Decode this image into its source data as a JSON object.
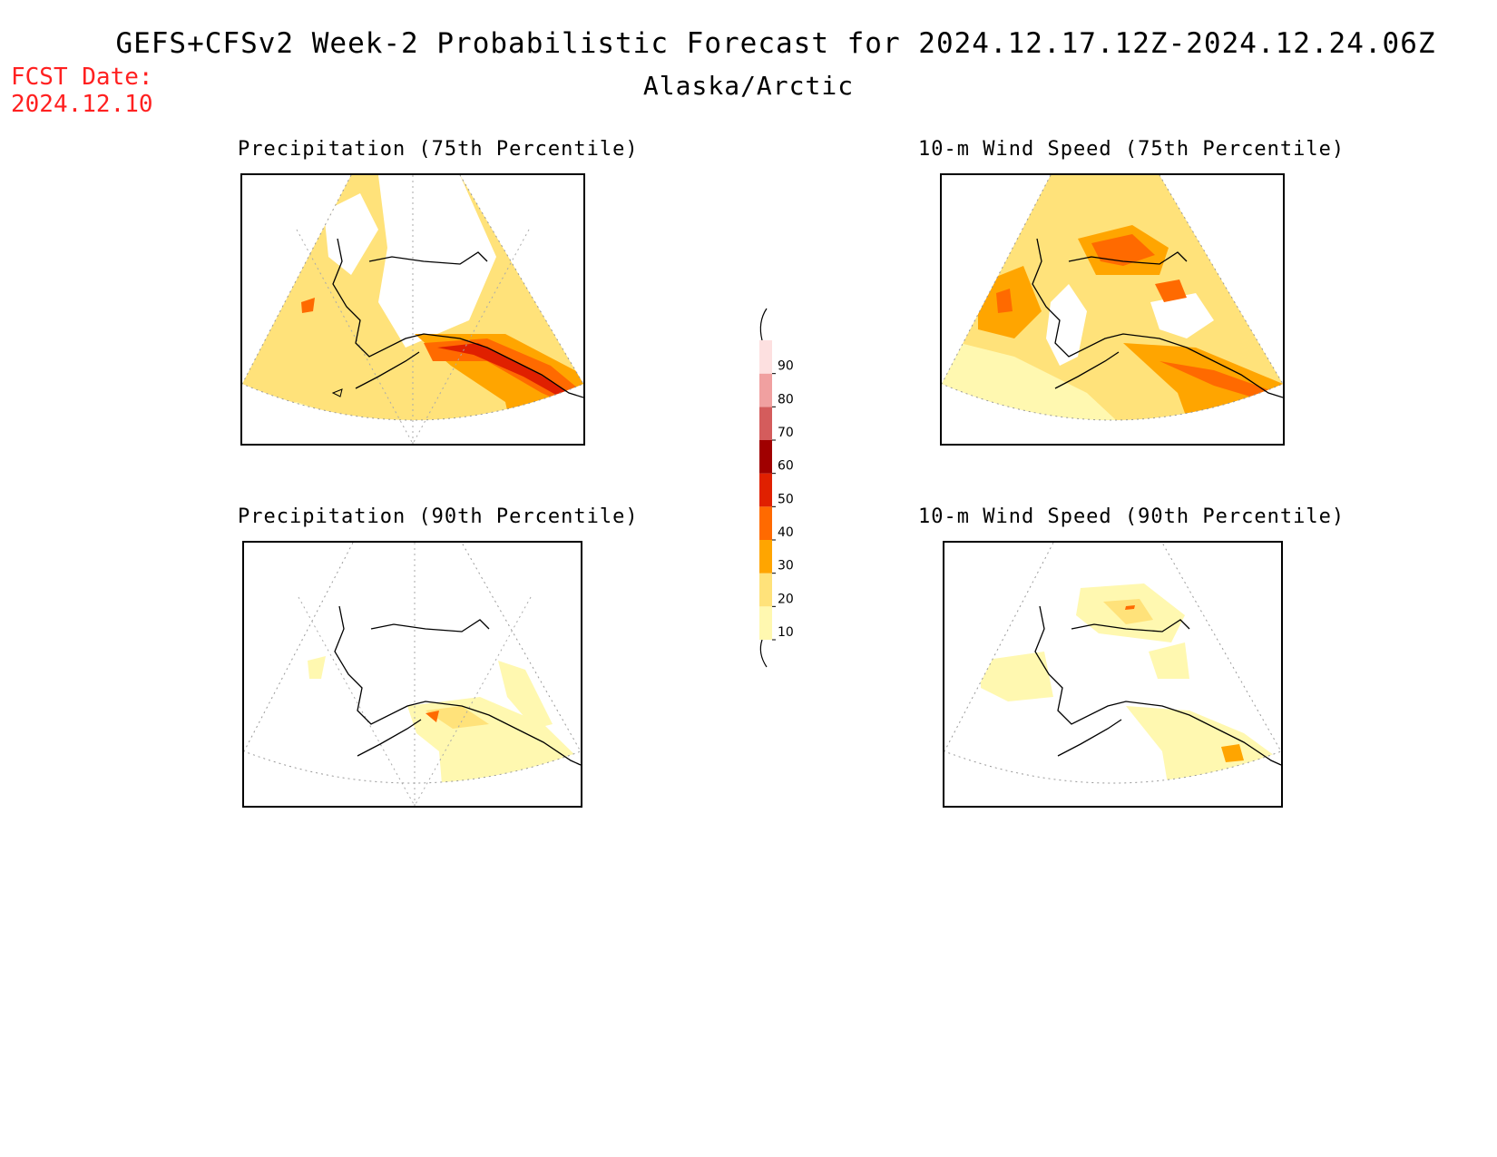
{
  "header": {
    "title": "GEFS+CFSv2 Week-2 Probabilistic Forecast for 2024.12.17.12Z-2024.12.24.06Z",
    "subtitle": "Alaska/Arctic",
    "fcst_date_label": "FCST Date:",
    "fcst_date_value": "2024.12.10"
  },
  "panels": [
    {
      "id": "precip-75",
      "title": "Precipitation (75th Percentile)"
    },
    {
      "id": "wind-75",
      "title": "10-m Wind Speed (75th Percentile)"
    },
    {
      "id": "precip-90",
      "title": "Precipitation (90th Percentile)"
    },
    {
      "id": "wind-90",
      "title": "10-m Wind Speed (90th Percentile)"
    }
  ],
  "legend": {
    "levels": [
      "10",
      "20",
      "30",
      "40",
      "50",
      "60",
      "70",
      "80",
      "90"
    ],
    "colors": {
      "c10": "#fff8b0",
      "c20": "#ffe27a",
      "c30": "#ffa500",
      "c40": "#ff6a00",
      "c50": "#e02000",
      "c60": "#a00000",
      "c70": "#d45c5c",
      "c80": "#f0a0a0",
      "c90": "#fde0e0"
    }
  }
}
